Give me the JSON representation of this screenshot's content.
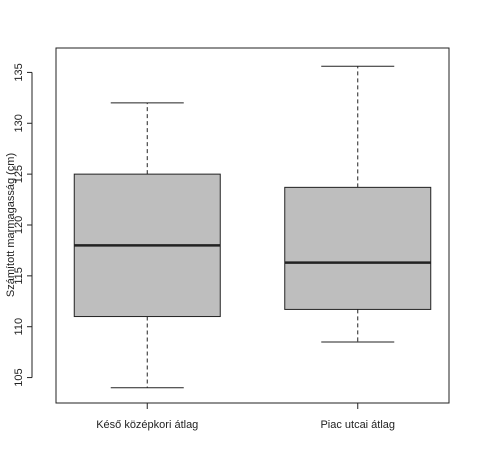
{
  "chart_data": {
    "type": "box",
    "title": "",
    "xlabel": "",
    "ylabel": "Számított marmagasság (cm)",
    "ylim": [
      102.5,
      137.4
    ],
    "yticks": [
      105,
      110,
      115,
      120,
      125,
      130,
      135
    ],
    "grid": false,
    "categories": [
      "Késő középkori átlag",
      "Piac utcai átlag"
    ],
    "boxes": [
      {
        "category": "Késő középkori átlag",
        "whisker_low": 104,
        "q1": 111,
        "median": 118,
        "q3": 125,
        "whisker_high": 132
      },
      {
        "category": "Piac utcai átlag",
        "whisker_low": 108.5,
        "q1": 111.7,
        "median": 116.3,
        "q3": 123.7,
        "whisker_high": 135.6
      }
    ],
    "colors": {
      "box_fill": "#bebebe",
      "stroke": "#222222"
    }
  }
}
